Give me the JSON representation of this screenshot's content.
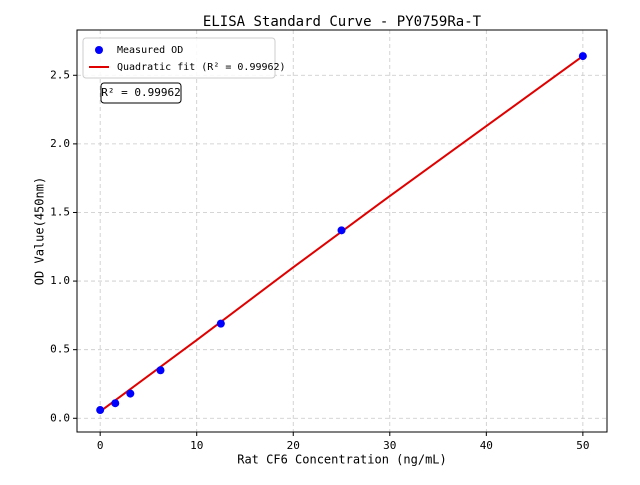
{
  "chart_data": {
    "type": "scatter",
    "title": "ELISA Standard Curve - PY0759Ra-T",
    "x_label": "Rat CF6 Concentration (ng/mL)",
    "y_label": "OD Value(450nm)",
    "annotation": "R² = 0.99962",
    "series": [
      {
        "name": "Measured OD",
        "mode": "markers",
        "color": "#0000ff",
        "x": [
          0,
          1.5625,
          3.125,
          6.25,
          12.5,
          25,
          50
        ],
        "values": [
          0.06,
          0.11,
          0.18,
          0.35,
          0.69,
          1.37,
          2.64
        ]
      },
      {
        "name": "Quadratic fit (R² = 0.99962)",
        "mode": "line",
        "color": "#e00000",
        "x": [
          0,
          10,
          20,
          30,
          40,
          50
        ],
        "values": [
          0.05,
          0.57,
          1.1,
          1.62,
          2.13,
          2.64
        ]
      }
    ],
    "xlim": [
      -2.4,
      52.5
    ],
    "xticks": [
      0,
      10,
      20,
      30,
      40,
      50
    ],
    "ylim": [
      -0.1,
      2.83
    ],
    "yticks": [
      {
        "value": 0,
        "label": "0.0"
      },
      0.5,
      {
        "value": 1,
        "label": "1.0"
      },
      1.5,
      {
        "value": 2,
        "label": "2.0"
      },
      2.5
    ],
    "grid": true,
    "legend": "upper-left"
  }
}
